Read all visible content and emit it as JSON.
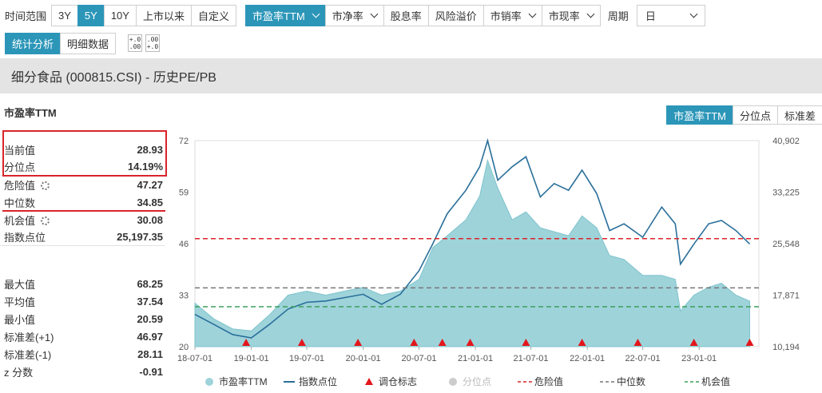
{
  "toolbar": {
    "time_range_label": "时间范围",
    "time_ranges": [
      "3Y",
      "5Y",
      "10Y",
      "上市以来",
      "自定义"
    ],
    "active_time_range": "5Y",
    "metrics": [
      "市盈率TTM",
      "市净率",
      "股息率",
      "风险溢价",
      "市销率",
      "市现率"
    ],
    "metric_has_dropdown": [
      true,
      true,
      false,
      false,
      true,
      true
    ],
    "active_metric": "市盈率TTM",
    "period_label": "周期",
    "period_value": "日",
    "views": [
      "统计分析",
      "明细数据"
    ],
    "active_view": "统计分析",
    "decimal_icon_top": "+.0",
    "decimal_icon_bottom": ".00"
  },
  "title": "细分食品 (000815.CSI) - 历史PE/PB",
  "stats": {
    "heading": "市盈率TTM",
    "rows": [
      {
        "label": "当前值",
        "value": "28.93"
      },
      {
        "label": "分位点",
        "value": "14.19%"
      },
      {
        "label": "危险值",
        "value": "47.27",
        "gear": true
      },
      {
        "label": "中位数",
        "value": "34.85"
      },
      {
        "label": "机会值",
        "value": "30.08",
        "gear": true
      },
      {
        "label": "指数点位",
        "value": "25,197.35"
      },
      {
        "label": "最大值",
        "value": "68.25"
      },
      {
        "label": "平均值",
        "value": "37.54"
      },
      {
        "label": "最小值",
        "value": "20.59"
      },
      {
        "label": "标准差(+1)",
        "value": "46.97"
      },
      {
        "label": "标准差(-1)",
        "value": "28.11"
      },
      {
        "label": "z 分数",
        "value": "-0.91"
      }
    ]
  },
  "metric_tabs": [
    "市盈率TTM",
    "分位点",
    "标准差"
  ],
  "active_metric_tab": "市盈率TTM",
  "colors": {
    "accent": "#2c96b9",
    "area": "#9ed3da",
    "index_line": "#2a6f9a",
    "danger": "#d9252a",
    "median": "#777777",
    "opportunity": "#3aa05a",
    "marker": "#e3161b",
    "highlight": "#d9252a"
  },
  "chart_data": {
    "type": "area",
    "x_ticks": [
      "18-07-01",
      "19-01-01",
      "19-07-01",
      "20-01-01",
      "20-07-01",
      "21-01-01",
      "21-07-01",
      "22-01-01",
      "22-07-01",
      "23-01-01"
    ],
    "y_left": {
      "min": 20,
      "max": 72,
      "ticks": [
        20,
        33,
        46,
        59,
        72
      ]
    },
    "y_right": {
      "min": 10194,
      "max": 40902,
      "ticks": [
        "10,194",
        "17,871",
        "25,548",
        "33,225",
        "40,902"
      ]
    },
    "series": [
      {
        "name": "市盈率TTM",
        "axis": "left",
        "kind": "area",
        "x": [
          "2018-07-01",
          "2018-09-01",
          "2018-11-01",
          "2019-01-01",
          "2019-03-01",
          "2019-05-01",
          "2019-07-01",
          "2019-09-01",
          "2019-11-01",
          "2020-01-01",
          "2020-03-01",
          "2020-05-01",
          "2020-07-01",
          "2020-08-15",
          "2020-10-01",
          "2020-12-01",
          "2021-01-15",
          "2021-02-10",
          "2021-03-15",
          "2021-05-01",
          "2021-06-15",
          "2021-08-01",
          "2021-09-15",
          "2021-11-01",
          "2021-12-15",
          "2022-02-01",
          "2022-03-15",
          "2022-05-01",
          "2022-07-01",
          "2022-09-01",
          "2022-10-15",
          "2022-11-01",
          "2022-12-15",
          "2023-02-01",
          "2023-03-15",
          "2023-05-01",
          "2023-06-15"
        ],
        "values": [
          31,
          27,
          24.5,
          24,
          28,
          33,
          34,
          33,
          34,
          35,
          33,
          34,
          37,
          45,
          48,
          52,
          58,
          67,
          60,
          52,
          54,
          50,
          49,
          48,
          53,
          50,
          43,
          42,
          38,
          38,
          37,
          29,
          33,
          35,
          36,
          33,
          31.5
        ]
      },
      {
        "name": "指数点位",
        "axis": "right",
        "kind": "line",
        "x": [
          "2018-07-01",
          "2018-09-01",
          "2018-11-01",
          "2019-01-01",
          "2019-03-01",
          "2019-05-01",
          "2019-07-01",
          "2019-09-01",
          "2019-11-01",
          "2020-01-01",
          "2020-03-01",
          "2020-05-01",
          "2020-07-01",
          "2020-08-15",
          "2020-10-01",
          "2020-12-01",
          "2021-01-15",
          "2021-02-10",
          "2021-03-15",
          "2021-05-01",
          "2021-06-15",
          "2021-08-01",
          "2021-09-15",
          "2021-11-01",
          "2021-12-15",
          "2022-02-01",
          "2022-03-15",
          "2022-05-01",
          "2022-07-01",
          "2022-09-01",
          "2022-10-15",
          "2022-11-01",
          "2022-12-15",
          "2023-02-01",
          "2023-03-15",
          "2023-05-01",
          "2023-06-15"
        ],
        "values": [
          15000,
          13500,
          12000,
          11500,
          13500,
          15800,
          16800,
          17000,
          17500,
          18000,
          16500,
          18000,
          21500,
          25500,
          30000,
          33500,
          37000,
          40900,
          35000,
          37000,
          38500,
          32500,
          34500,
          33500,
          36500,
          33000,
          27500,
          28500,
          26500,
          31000,
          28500,
          22500,
          25500,
          28500,
          29000,
          27500,
          25500
        ]
      }
    ],
    "reference_lines": [
      {
        "name": "危险值",
        "value": 47.27,
        "style": "dashed",
        "color": "#d9252a"
      },
      {
        "name": "中位数",
        "value": 34.85,
        "style": "dashed",
        "color": "#777777"
      },
      {
        "name": "机会值",
        "value": 30.08,
        "style": "dashed",
        "color": "#3aa05a"
      }
    ],
    "rebalance_markers": [
      "2018-12-15",
      "2019-06-15",
      "2019-12-15",
      "2020-06-15",
      "2020-09-15",
      "2020-12-15",
      "2021-06-15",
      "2021-12-15",
      "2022-06-15",
      "2022-12-15",
      "2023-06-15"
    ],
    "legend": [
      {
        "name": "市盈率TTM",
        "symbol": "dot",
        "color": "#9ed3da"
      },
      {
        "name": "指数点位",
        "symbol": "line",
        "color": "#2a6f9a"
      },
      {
        "name": "调仓标志",
        "symbol": "triangle",
        "color": "#e3161b"
      },
      {
        "name": "分位点",
        "symbol": "dot",
        "color": "#cccccc",
        "inactive": true
      },
      {
        "name": "危险值",
        "symbol": "dash",
        "color": "#d9252a"
      },
      {
        "name": "中位数",
        "symbol": "dash",
        "color": "#777777"
      },
      {
        "name": "机会值",
        "symbol": "dash",
        "color": "#3aa05a"
      }
    ],
    "legend_position": "bottom",
    "grid": false
  }
}
